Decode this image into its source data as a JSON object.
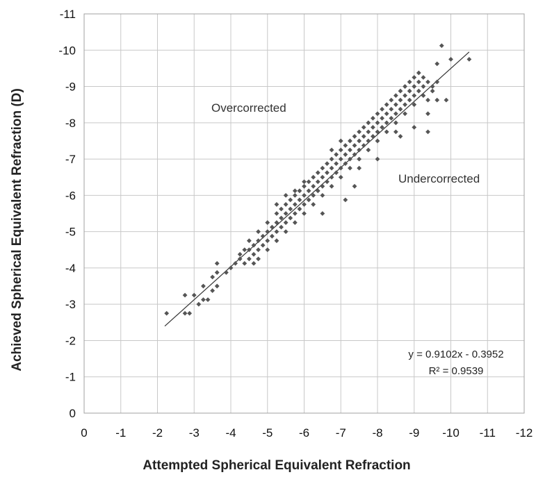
{
  "chart_data": {
    "type": "scatter",
    "xlabel": "Attempted   Spherical Equivalent Refraction",
    "ylabel": "Achieved Spherical Equivalent Refraction (D)",
    "xlim": [
      0,
      -12
    ],
    "ylim": [
      0,
      -11
    ],
    "x_ticks": [
      0,
      -1,
      -2,
      -3,
      -4,
      -5,
      -6,
      -7,
      -8,
      -9,
      -10,
      -11,
      -12
    ],
    "y_ticks": [
      0,
      -1,
      -2,
      -3,
      -4,
      -5,
      -6,
      -7,
      -8,
      -9,
      -10,
      -11
    ],
    "x_tick_labels": [
      "0",
      "-1",
      "-2",
      "-3",
      "-4",
      "-5",
      "-6",
      "-7",
      "-8",
      "-9",
      "-10",
      "-11",
      "-12"
    ],
    "y_tick_labels": [
      "0",
      "-1",
      "-2",
      "-3",
      "-4",
      "-5",
      "-6",
      "-7",
      "-8",
      "-9",
      "-10",
      "-11"
    ],
    "grid": true,
    "marker_color": "#555555",
    "trendline": {
      "slope": 0.9102,
      "intercept": -0.3952,
      "x_range": [
        -2.2,
        -10.5
      ],
      "equation_label": "y = 0.9102x - 0.3952",
      "r2_label": "R² = 0.9539",
      "color": "#333333"
    },
    "annotations": {
      "upper_region": "Overcorrected",
      "lower_region": "Undercorrected"
    },
    "points": [
      [
        -2.25,
        -2.75
      ],
      [
        -2.75,
        -3.25
      ],
      [
        -2.75,
        -2.75
      ],
      [
        -2.875,
        -2.75
      ],
      [
        -3.0,
        -3.25
      ],
      [
        -3.125,
        -3.0
      ],
      [
        -3.25,
        -3.125
      ],
      [
        -3.25,
        -3.5
      ],
      [
        -3.375,
        -3.125
      ],
      [
        -3.5,
        -3.375
      ],
      [
        -3.5,
        -3.75
      ],
      [
        -3.625,
        -4.125
      ],
      [
        -3.625,
        -3.875
      ],
      [
        -3.625,
        -3.5
      ],
      [
        -3.875,
        -3.875
      ],
      [
        -4.0,
        -4.0
      ],
      [
        -4.125,
        -4.125
      ],
      [
        -4.25,
        -4.375
      ],
      [
        -4.25,
        -4.25
      ],
      [
        -4.375,
        -4.5
      ],
      [
        -4.375,
        -4.125
      ],
      [
        -4.5,
        -4.5
      ],
      [
        -4.5,
        -4.25
      ],
      [
        -4.5,
        -4.75
      ],
      [
        -4.625,
        -4.375
      ],
      [
        -4.625,
        -4.625
      ],
      [
        -4.625,
        -4.125
      ],
      [
        -4.75,
        -4.75
      ],
      [
        -4.75,
        -4.5
      ],
      [
        -4.75,
        -5.0
      ],
      [
        -4.75,
        -4.25
      ],
      [
        -4.875,
        -4.875
      ],
      [
        -4.875,
        -4.625
      ],
      [
        -5.0,
        -5.0
      ],
      [
        -5.0,
        -4.75
      ],
      [
        -5.0,
        -5.25
      ],
      [
        -5.0,
        -4.5
      ],
      [
        -5.125,
        -5.125
      ],
      [
        -5.125,
        -4.875
      ],
      [
        -5.25,
        -5.25
      ],
      [
        -5.25,
        -5.5
      ],
      [
        -5.25,
        -5.0
      ],
      [
        -5.25,
        -4.75
      ],
      [
        -5.25,
        -5.75
      ],
      [
        -5.375,
        -5.375
      ],
      [
        -5.375,
        -5.625
      ],
      [
        -5.375,
        -5.125
      ],
      [
        -5.5,
        -5.5
      ],
      [
        -5.5,
        -5.25
      ],
      [
        -5.5,
        -5.75
      ],
      [
        -5.5,
        -6.0
      ],
      [
        -5.5,
        -5.0
      ],
      [
        -5.625,
        -5.625
      ],
      [
        -5.625,
        -5.375
      ],
      [
        -5.625,
        -5.875
      ],
      [
        -5.75,
        -5.75
      ],
      [
        -5.75,
        -5.5
      ],
      [
        -5.75,
        -6.0
      ],
      [
        -5.75,
        -6.125
      ],
      [
        -5.75,
        -5.25
      ],
      [
        -5.875,
        -5.875
      ],
      [
        -5.875,
        -5.625
      ],
      [
        -5.875,
        -6.125
      ],
      [
        -6.0,
        -6.0
      ],
      [
        -6.0,
        -5.75
      ],
      [
        -6.0,
        -6.25
      ],
      [
        -6.0,
        -5.5
      ],
      [
        -6.0,
        -6.375
      ],
      [
        -6.125,
        -6.125
      ],
      [
        -6.125,
        -5.875
      ],
      [
        -6.125,
        -6.375
      ],
      [
        -6.25,
        -6.25
      ],
      [
        -6.25,
        -6.0
      ],
      [
        -6.25,
        -6.5
      ],
      [
        -6.25,
        -5.75
      ],
      [
        -6.375,
        -6.375
      ],
      [
        -6.375,
        -6.125
      ],
      [
        -6.375,
        -6.625
      ],
      [
        -6.5,
        -6.5
      ],
      [
        -6.5,
        -6.25
      ],
      [
        -6.5,
        -6.75
      ],
      [
        -6.5,
        -6.0
      ],
      [
        -6.5,
        -5.5
      ],
      [
        -6.625,
        -6.625
      ],
      [
        -6.625,
        -6.375
      ],
      [
        -6.625,
        -6.875
      ],
      [
        -6.75,
        -6.75
      ],
      [
        -6.75,
        -6.5
      ],
      [
        -6.75,
        -7.0
      ],
      [
        -6.75,
        -6.25
      ],
      [
        -6.75,
        -7.25
      ],
      [
        -6.875,
        -6.875
      ],
      [
        -6.875,
        -6.625
      ],
      [
        -6.875,
        -7.125
      ],
      [
        -7.0,
        -7.0
      ],
      [
        -7.0,
        -6.75
      ],
      [
        -7.0,
        -7.25
      ],
      [
        -7.0,
        -6.5
      ],
      [
        -7.0,
        -7.5
      ],
      [
        -7.125,
        -7.125
      ],
      [
        -7.125,
        -6.875
      ],
      [
        -7.125,
        -7.375
      ],
      [
        -7.125,
        -5.875
      ],
      [
        -7.25,
        -7.25
      ],
      [
        -7.25,
        -7.0
      ],
      [
        -7.25,
        -7.5
      ],
      [
        -7.25,
        -6.75
      ],
      [
        -7.375,
        -7.375
      ],
      [
        -7.375,
        -7.125
      ],
      [
        -7.375,
        -7.625
      ],
      [
        -7.375,
        -6.25
      ],
      [
        -7.5,
        -7.5
      ],
      [
        -7.5,
        -7.25
      ],
      [
        -7.5,
        -7.75
      ],
      [
        -7.5,
        -7.0
      ],
      [
        -7.5,
        -6.75
      ],
      [
        -7.625,
        -7.625
      ],
      [
        -7.625,
        -7.375
      ],
      [
        -7.625,
        -7.875
      ],
      [
        -7.75,
        -7.75
      ],
      [
        -7.75,
        -7.5
      ],
      [
        -7.75,
        -8.0
      ],
      [
        -7.75,
        -7.25
      ],
      [
        -7.875,
        -7.875
      ],
      [
        -7.875,
        -7.625
      ],
      [
        -7.875,
        -8.125
      ],
      [
        -8.0,
        -8.0
      ],
      [
        -8.0,
        -7.75
      ],
      [
        -8.0,
        -8.25
      ],
      [
        -8.0,
        -7.5
      ],
      [
        -8.0,
        -7.0
      ],
      [
        -8.125,
        -8.125
      ],
      [
        -8.125,
        -7.875
      ],
      [
        -8.125,
        -8.375
      ],
      [
        -8.25,
        -8.25
      ],
      [
        -8.25,
        -8.0
      ],
      [
        -8.25,
        -8.5
      ],
      [
        -8.25,
        -7.75
      ],
      [
        -8.375,
        -8.375
      ],
      [
        -8.375,
        -8.125
      ],
      [
        -8.375,
        -8.625
      ],
      [
        -8.5,
        -8.5
      ],
      [
        -8.5,
        -8.25
      ],
      [
        -8.5,
        -8.75
      ],
      [
        -8.5,
        -8.0
      ],
      [
        -8.5,
        -7.75
      ],
      [
        -8.625,
        -8.625
      ],
      [
        -8.625,
        -8.375
      ],
      [
        -8.625,
        -8.875
      ],
      [
        -8.625,
        -7.625
      ],
      [
        -8.75,
        -8.75
      ],
      [
        -8.75,
        -8.5
      ],
      [
        -8.75,
        -9.0
      ],
      [
        -8.75,
        -8.25
      ],
      [
        -8.875,
        -8.875
      ],
      [
        -8.875,
        -8.625
      ],
      [
        -8.875,
        -9.125
      ],
      [
        -9.0,
        -9.0
      ],
      [
        -9.0,
        -8.75
      ],
      [
        -9.0,
        -9.25
      ],
      [
        -9.0,
        -8.5
      ],
      [
        -9.0,
        -7.875
      ],
      [
        -9.125,
        -9.125
      ],
      [
        -9.125,
        -8.875
      ],
      [
        -9.125,
        -9.375
      ],
      [
        -9.25,
        -9.25
      ],
      [
        -9.25,
        -9.0
      ],
      [
        -9.25,
        -8.75
      ],
      [
        -9.375,
        -9.125
      ],
      [
        -9.375,
        -8.625
      ],
      [
        -9.375,
        -8.25
      ],
      [
        -9.375,
        -7.75
      ],
      [
        -9.5,
        -9.0
      ],
      [
        -9.5,
        -8.875
      ],
      [
        -9.625,
        -9.625
      ],
      [
        -9.625,
        -9.125
      ],
      [
        -9.625,
        -8.625
      ],
      [
        -9.75,
        -10.125
      ],
      [
        -9.875,
        -8.625
      ],
      [
        -10.0,
        -9.75
      ],
      [
        -10.5,
        -9.75
      ]
    ]
  }
}
